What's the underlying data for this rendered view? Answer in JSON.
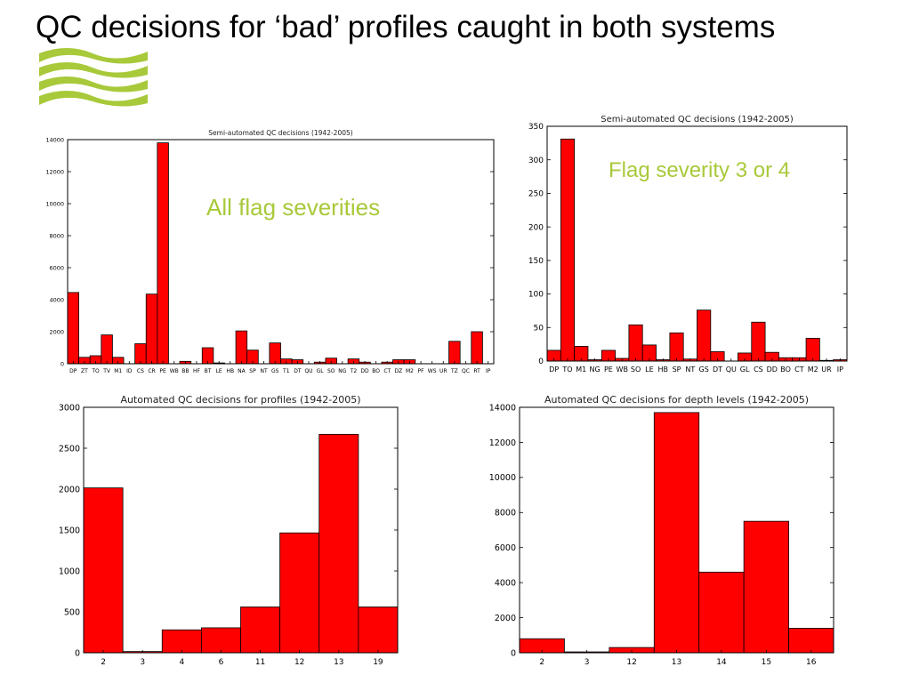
{
  "slide": {
    "title": "QC decisions for ‘bad’ profiles caught in both systems",
    "logo_icon": "wave-logo-icon",
    "accent_color": "#a8c93a",
    "annotation_left": "All flag severities",
    "annotation_right": "Flag severity 3 or 4"
  },
  "chart_data": [
    {
      "type": "bar",
      "title": "Semi-automated QC decisions (1942-2005)",
      "categories": [
        "DP",
        "ZT",
        "TO",
        "TV",
        "M1",
        "ID",
        "CS",
        "CR",
        "PE",
        "WB",
        "BB",
        "HF",
        "BT",
        "LE",
        "HB",
        "NA",
        "SP",
        "NT",
        "GS",
        "T1",
        "DT",
        "QU",
        "GL",
        "SO",
        "NG",
        "T2",
        "DD",
        "BO",
        "CT",
        "DZ",
        "M2",
        "PF",
        "WS",
        "UR",
        "TZ",
        "QC",
        "RT",
        "IP"
      ],
      "values": [
        4450,
        400,
        500,
        1800,
        400,
        0,
        1250,
        4350,
        13800,
        0,
        150,
        0,
        1000,
        50,
        0,
        2050,
        850,
        0,
        1300,
        300,
        250,
        0,
        100,
        350,
        0,
        300,
        100,
        0,
        100,
        250,
        250,
        0,
        0,
        0,
        1400,
        0,
        2000,
        0
      ],
      "ylim": [
        0,
        14000
      ],
      "yticks": [
        0,
        2000,
        4000,
        6000,
        8000,
        10000,
        12000,
        14000
      ],
      "color": "#ff0000"
    },
    {
      "type": "bar",
      "title": "Semi-automated QC decisions (1942-2005)",
      "categories": [
        "DP",
        "TO",
        "M1",
        "NG",
        "PE",
        "WB",
        "SO",
        "LE",
        "HB",
        "SP",
        "NT",
        "GS",
        "DT",
        "QU",
        "GL",
        "CS",
        "DD",
        "BO",
        "CT",
        "M2",
        "UR",
        "IP"
      ],
      "values": [
        16,
        331,
        22,
        2,
        16,
        4,
        54,
        24,
        2,
        42,
        3,
        76,
        14,
        0,
        12,
        58,
        13,
        5,
        5,
        34,
        1,
        2
      ],
      "ylim": [
        0,
        350
      ],
      "yticks": [
        0,
        50,
        100,
        150,
        200,
        250,
        300,
        350
      ],
      "color": "#ff0000"
    },
    {
      "type": "bar",
      "title": "Automated QC decisions for profiles (1942-2005)",
      "categories": [
        "2",
        "3",
        "4",
        "6",
        "11",
        "12",
        "13",
        "19"
      ],
      "values": [
        2015,
        15,
        280,
        305,
        560,
        1465,
        2670,
        560
      ],
      "ylim": [
        0,
        3000
      ],
      "yticks": [
        0,
        500,
        1000,
        1500,
        2000,
        2500,
        3000
      ],
      "color": "#ff0000"
    },
    {
      "type": "bar",
      "title": "Automated QC decisions for depth levels (1942-2005)",
      "categories": [
        "2",
        "3",
        "12",
        "13",
        "14",
        "15",
        "16"
      ],
      "values": [
        800,
        50,
        300,
        13700,
        4600,
        7500,
        1400
      ],
      "ylim": [
        0,
        14000
      ],
      "yticks": [
        0,
        2000,
        4000,
        6000,
        8000,
        10000,
        12000,
        14000
      ],
      "color": "#ff0000"
    }
  ]
}
